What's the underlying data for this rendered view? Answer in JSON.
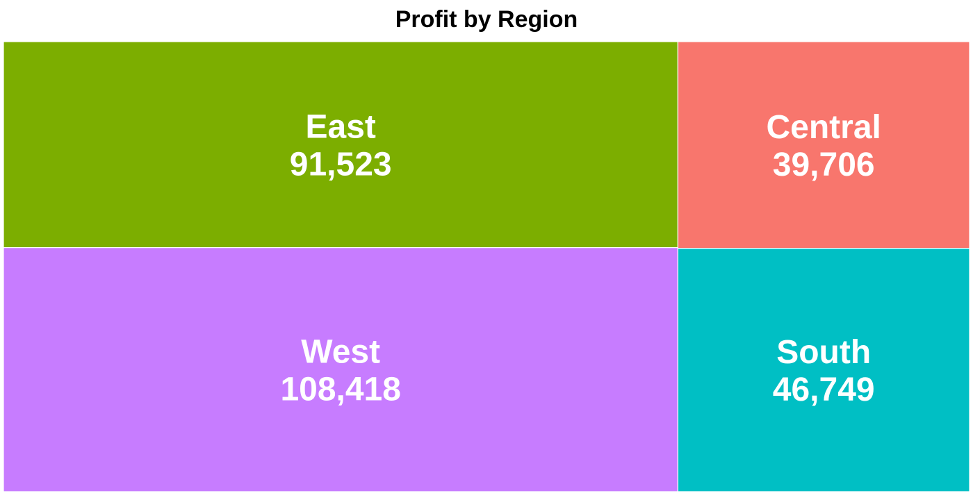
{
  "chart_data": {
    "type": "treemap",
    "title": "Profit by Region",
    "tiles": [
      {
        "label": "West",
        "value": 108418,
        "display_value": "108,418",
        "color": "#C77CFF"
      },
      {
        "label": "East",
        "value": 91523,
        "display_value": "91,523",
        "color": "#7CAE00"
      },
      {
        "label": "South",
        "value": 46749,
        "display_value": "46,749",
        "color": "#00BFC4"
      },
      {
        "label": "Central",
        "value": 39706,
        "display_value": "39,706",
        "color": "#F8766D"
      }
    ]
  }
}
